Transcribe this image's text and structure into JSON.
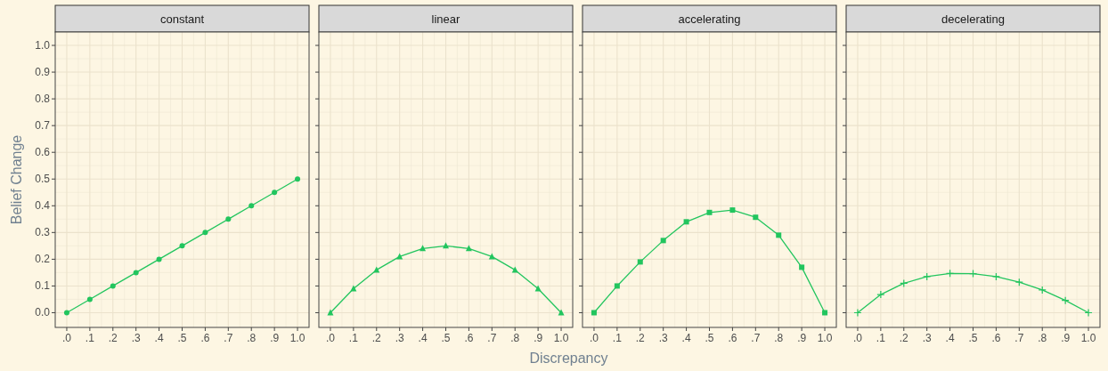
{
  "chart_data": [
    {
      "type": "line",
      "title": "constant",
      "ylabel": "Belief Change",
      "x": [
        0,
        0.1,
        0.2,
        0.3,
        0.4,
        0.5,
        0.6,
        0.7,
        0.8,
        0.9,
        1.0
      ],
      "series": [
        {
          "color": "#22c55e",
          "values": [
            0,
            0.05,
            0.1,
            0.15,
            0.2,
            0.25,
            0.3,
            0.35,
            0.4,
            0.45,
            0.5
          ]
        }
      ],
      "marker": "circle",
      "grid": true,
      "xlim": [
        -0.05,
        1.05
      ],
      "ylim": [
        -0.055,
        1.05
      ],
      "xticks": [
        {
          "value": 0,
          "label": ".0"
        },
        {
          "value": 0.1,
          "label": ".1"
        },
        {
          "value": 0.2,
          "label": ".2"
        },
        {
          "value": 0.3,
          "label": ".3"
        },
        {
          "value": 0.4,
          "label": ".4"
        },
        {
          "value": 0.5,
          "label": ".5"
        },
        {
          "value": 0.6,
          "label": ".6"
        },
        {
          "value": 0.7,
          "label": ".7"
        },
        {
          "value": 0.8,
          "label": ".8"
        },
        {
          "value": 0.9,
          "label": ".9"
        },
        {
          "value": 1,
          "label": "1.0"
        }
      ],
      "yticks": [
        {
          "value": 0,
          "label": "0.0"
        },
        {
          "value": 0.1,
          "label": "0.1"
        },
        {
          "value": 0.2,
          "label": "0.2"
        },
        {
          "value": 0.3,
          "label": "0.3"
        },
        {
          "value": 0.4,
          "label": "0.4"
        },
        {
          "value": 0.5,
          "label": "0.5"
        },
        {
          "value": 0.6,
          "label": "0.6"
        },
        {
          "value": 0.7,
          "label": "0.7"
        },
        {
          "value": 0.8,
          "label": "0.8"
        },
        {
          "value": 0.9,
          "label": "0.9"
        },
        {
          "value": 1,
          "label": "1.0"
        }
      ]
    },
    {
      "type": "line",
      "title": "linear",
      "xlabel": "Discrepancy",
      "x": [
        0,
        0.1,
        0.2,
        0.3,
        0.4,
        0.5,
        0.6,
        0.7,
        0.8,
        0.9,
        1.0
      ],
      "series": [
        {
          "color": "#22c55e",
          "values": [
            0,
            0.09,
            0.16,
            0.21,
            0.24,
            0.25,
            0.24,
            0.21,
            0.16,
            0.09,
            0
          ]
        }
      ],
      "marker": "triangle",
      "grid": true,
      "tick_labels": "x",
      "xlim": [
        -0.05,
        1.05
      ],
      "ylim": [
        -0.055,
        1.05
      ],
      "xticks": [
        {
          "value": 0,
          "label": ".0"
        },
        {
          "value": 0.1,
          "label": ".1"
        },
        {
          "value": 0.2,
          "label": ".2"
        },
        {
          "value": 0.3,
          "label": ".3"
        },
        {
          "value": 0.4,
          "label": ".4"
        },
        {
          "value": 0.5,
          "label": ".5"
        },
        {
          "value": 0.6,
          "label": ".6"
        },
        {
          "value": 0.7,
          "label": ".7"
        },
        {
          "value": 0.8,
          "label": ".8"
        },
        {
          "value": 0.9,
          "label": ".9"
        },
        {
          "value": 1,
          "label": "1.0"
        }
      ],
      "yticks": [
        {
          "value": 0,
          "label": null
        },
        {
          "value": 0.1,
          "label": null
        },
        {
          "value": 0.2,
          "label": null
        },
        {
          "value": 0.3,
          "label": null
        },
        {
          "value": 0.4,
          "label": null
        },
        {
          "value": 0.5,
          "label": null
        },
        {
          "value": 0.6,
          "label": null
        },
        {
          "value": 0.7,
          "label": null
        },
        {
          "value": 0.8,
          "label": null
        },
        {
          "value": 0.9,
          "label": null
        },
        {
          "value": 1,
          "label": null
        }
      ]
    },
    {
      "type": "line",
      "title": "accelerating",
      "x": [
        0,
        0.1,
        0.2,
        0.3,
        0.4,
        0.5,
        0.6,
        0.7,
        0.8,
        0.9,
        1.0
      ],
      "series": [
        {
          "color": "#22c55e",
          "values": [
            0,
            0.1,
            0.19,
            0.27,
            0.34,
            0.375,
            0.384,
            0.357,
            0.29,
            0.17,
            0
          ]
        }
      ],
      "marker": "square",
      "grid": true,
      "tick_labels": "x",
      "xlim": [
        -0.05,
        1.05
      ],
      "ylim": [
        -0.055,
        1.05
      ],
      "xticks": [
        {
          "value": 0,
          "label": ".0"
        },
        {
          "value": 0.1,
          "label": ".1"
        },
        {
          "value": 0.2,
          "label": ".2"
        },
        {
          "value": 0.3,
          "label": ".3"
        },
        {
          "value": 0.4,
          "label": ".4"
        },
        {
          "value": 0.5,
          "label": ".5"
        },
        {
          "value": 0.6,
          "label": ".6"
        },
        {
          "value": 0.7,
          "label": ".7"
        },
        {
          "value": 0.8,
          "label": ".8"
        },
        {
          "value": 0.9,
          "label": ".9"
        },
        {
          "value": 1,
          "label": "1.0"
        }
      ],
      "yticks": [
        {
          "value": 0,
          "label": null
        },
        {
          "value": 0.1,
          "label": null
        },
        {
          "value": 0.2,
          "label": null
        },
        {
          "value": 0.3,
          "label": null
        },
        {
          "value": 0.4,
          "label": null
        },
        {
          "value": 0.5,
          "label": null
        },
        {
          "value": 0.6,
          "label": null
        },
        {
          "value": 0.7,
          "label": null
        },
        {
          "value": 0.8,
          "label": null
        },
        {
          "value": 0.9,
          "label": null
        },
        {
          "value": 1,
          "label": null
        }
      ]
    },
    {
      "type": "line",
      "title": "decelerating",
      "x": [
        0,
        0.1,
        0.2,
        0.3,
        0.4,
        0.5,
        0.6,
        0.7,
        0.8,
        0.9,
        1.0
      ],
      "series": [
        {
          "color": "#22c55e",
          "values": [
            0,
            0.068,
            0.11,
            0.135,
            0.147,
            0.146,
            0.135,
            0.114,
            0.085,
            0.046,
            0
          ]
        }
      ],
      "marker": "cross",
      "grid": true,
      "tick_labels": "x",
      "xlim": [
        -0.05,
        1.05
      ],
      "ylim": [
        -0.055,
        1.05
      ],
      "xticks": [
        {
          "value": 0,
          "label": ".0"
        },
        {
          "value": 0.1,
          "label": ".1"
        },
        {
          "value": 0.2,
          "label": ".2"
        },
        {
          "value": 0.3,
          "label": ".3"
        },
        {
          "value": 0.4,
          "label": ".4"
        },
        {
          "value": 0.5,
          "label": ".5"
        },
        {
          "value": 0.6,
          "label": ".6"
        },
        {
          "value": 0.7,
          "label": ".7"
        },
        {
          "value": 0.8,
          "label": ".8"
        },
        {
          "value": 0.9,
          "label": ".9"
        },
        {
          "value": 1,
          "label": "1.0"
        }
      ],
      "yticks": [
        {
          "value": 0,
          "label": null
        },
        {
          "value": 0.1,
          "label": null
        },
        {
          "value": 0.2,
          "label": null
        },
        {
          "value": 0.3,
          "label": null
        },
        {
          "value": 0.4,
          "label": null
        },
        {
          "value": 0.5,
          "label": null
        },
        {
          "value": 0.6,
          "label": null
        },
        {
          "value": 0.7,
          "label": null
        },
        {
          "value": 0.8,
          "label": null
        },
        {
          "value": 0.9,
          "label": null
        },
        {
          "value": 1,
          "label": null
        }
      ]
    }
  ]
}
